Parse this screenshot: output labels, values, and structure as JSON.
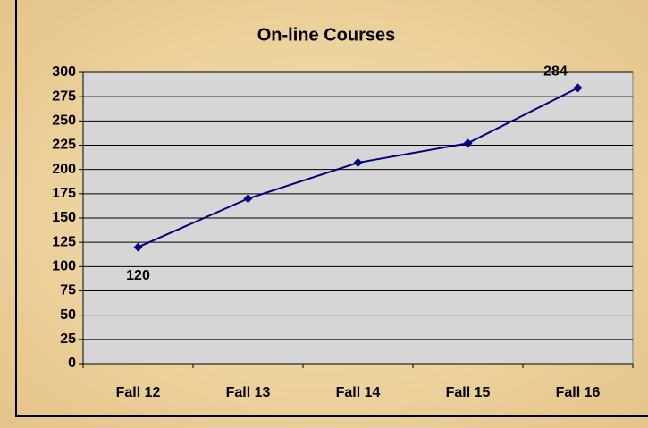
{
  "chart_data": {
    "type": "line",
    "title": "On-line Courses",
    "categories": [
      "Fall 12",
      "Fall 13",
      "Fall 14",
      "Fall 15",
      "Fall 16"
    ],
    "series": [
      {
        "name": "On-line Courses",
        "color": "#000080",
        "values": [
          120,
          170,
          207,
          227,
          284
        ],
        "value_labels": [
          120,
          null,
          null,
          null,
          284
        ]
      }
    ],
    "ylim": [
      0,
      300
    ],
    "yticks": [
      0,
      25,
      50,
      75,
      100,
      125,
      150,
      175,
      200,
      225,
      250,
      275,
      300
    ],
    "grid": true
  }
}
